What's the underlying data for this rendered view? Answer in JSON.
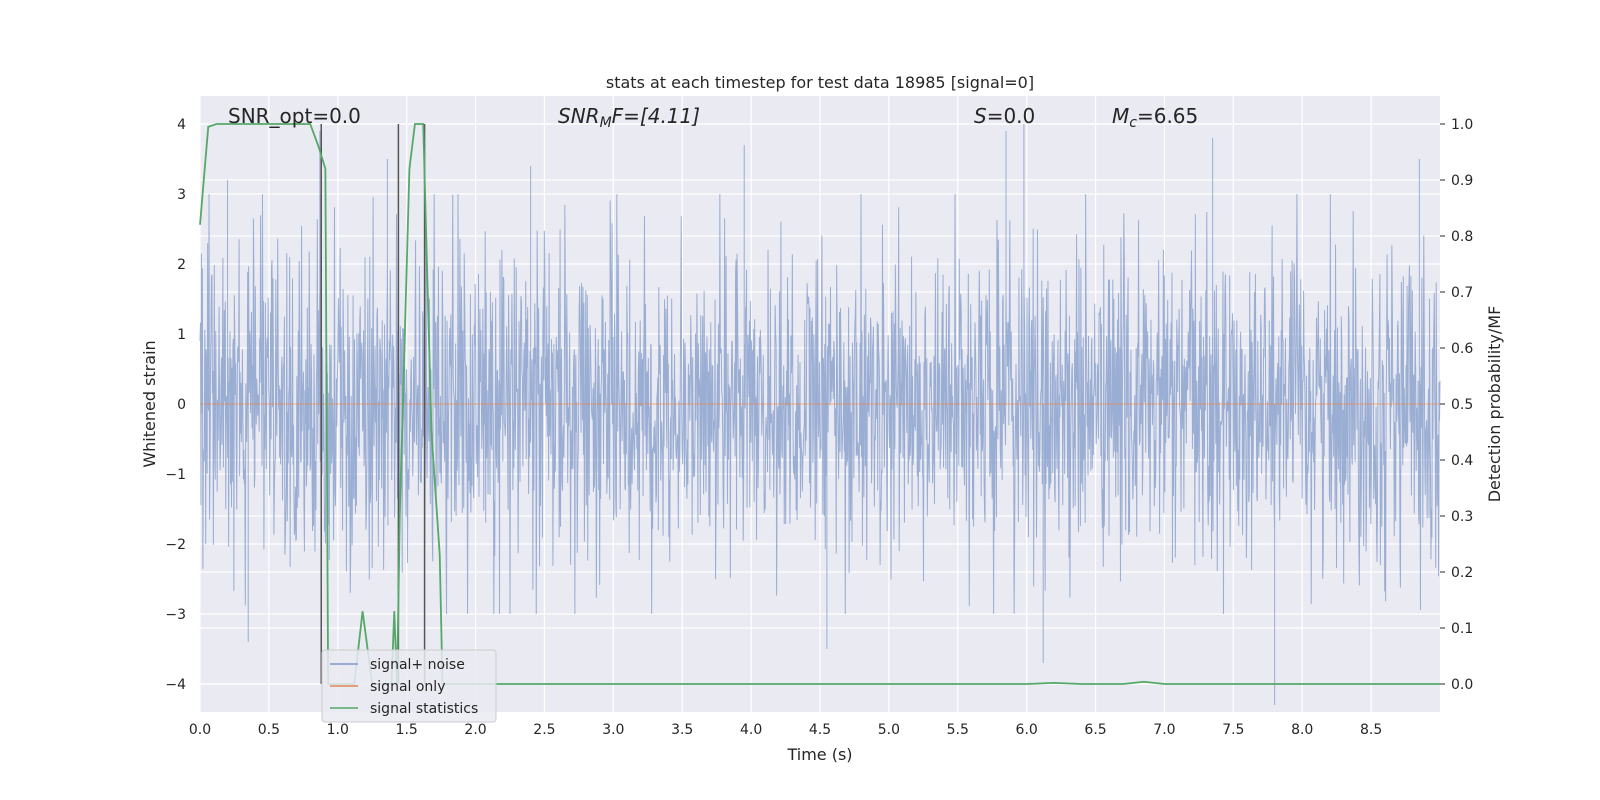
{
  "chart_data": {
    "type": "line",
    "title": "stats at each timestep for test data 18985 [signal=0]",
    "xlabel": "Time (s)",
    "ylabel": "Whitened strain",
    "y2label": "Detection probability/MF",
    "xlim": [
      0,
      9.0
    ],
    "ylim": [
      -4.4,
      4.4
    ],
    "y2lim": [
      -0.05,
      1.05
    ],
    "xticks": [
      0.0,
      0.5,
      1.0,
      1.5,
      2.0,
      2.5,
      3.0,
      3.5,
      4.0,
      4.5,
      5.0,
      5.5,
      6.0,
      6.5,
      7.0,
      7.5,
      8.0,
      8.5
    ],
    "xtick_labels": [
      "0.0",
      "0.5",
      "1.0",
      "1.5",
      "2.0",
      "2.5",
      "3.0",
      "3.5",
      "4.0",
      "4.5",
      "5.0",
      "5.5",
      "6.0",
      "6.5",
      "7.0",
      "7.5",
      "8.0",
      "8.5"
    ],
    "yticks": [
      -4,
      -3,
      -2,
      -1,
      0,
      1,
      2,
      3,
      4
    ],
    "ytick_labels": [
      "−4",
      "−3",
      "−2",
      "−1",
      "0",
      "1",
      "2",
      "3",
      "4"
    ],
    "y2ticks": [
      0.0,
      0.1,
      0.2,
      0.3,
      0.4,
      0.5,
      0.6,
      0.7,
      0.8,
      0.9,
      1.0
    ],
    "y2tick_labels": [
      "0.0",
      "0.1",
      "0.2",
      "0.3",
      "0.4",
      "0.5",
      "0.6",
      "0.7",
      "0.8",
      "0.9",
      "1.0"
    ],
    "grid": true,
    "legend_position": "lower-left",
    "annotations": {
      "snr_opt": "SNR_opt=0.0",
      "snr_mf_prefix": "SNR",
      "snr_mf_sub": "M",
      "snr_mf_rest": "F=[4.11]",
      "s_italic": "S",
      "s_rest": "=0.0",
      "mc_italic": "M",
      "mc_sub": "c",
      "mc_rest": "=6.65"
    },
    "series": [
      {
        "name": "signal+ noise",
        "color": "#7f98c8",
        "axis": "left",
        "description_values": "whitened noise, approx. 1 sigma, peaks near ±3.5",
        "envelope_spikes": [
          {
            "x": 0.2,
            "y": 3.2
          },
          {
            "x": 0.87,
            "y": 3.9
          },
          {
            "x": 1.36,
            "y": 3.5
          },
          {
            "x": 2.4,
            "y": 3.4
          },
          {
            "x": 3.95,
            "y": 3.7
          },
          {
            "x": 5.85,
            "y": 3.9
          },
          {
            "x": 5.98,
            "y": 4.0
          },
          {
            "x": 7.35,
            "y": 3.8
          },
          {
            "x": 8.85,
            "y": 3.5
          },
          {
            "x": 0.35,
            "y": -3.4
          },
          {
            "x": 4.55,
            "y": -3.5
          },
          {
            "x": 6.12,
            "y": -3.7
          },
          {
            "x": 7.8,
            "y": -4.3
          }
        ]
      },
      {
        "name": "signal only",
        "color": "#dd8452",
        "axis": "left",
        "x": [
          0.0,
          9.0
        ],
        "y": [
          0.0,
          0.0
        ]
      },
      {
        "name": "signal statistics",
        "color": "#55a868",
        "axis": "right",
        "x": [
          0.0,
          0.06,
          0.12,
          0.5,
          0.8,
          0.86,
          0.91,
          0.93,
          0.95,
          1.12,
          1.18,
          1.25,
          1.33,
          1.39,
          1.41,
          1.43,
          1.45,
          1.52,
          1.56,
          1.62,
          1.68,
          1.74,
          1.76,
          1.85,
          2.0,
          6.0,
          6.2,
          6.4,
          6.7,
          6.85,
          7.0,
          9.0
        ],
        "y": [
          0.82,
          0.995,
          1.0,
          1.0,
          1.0,
          0.96,
          0.92,
          0.0,
          0.0,
          0.0,
          0.13,
          0.0,
          0.0,
          0.0,
          0.13,
          0.0,
          0.3,
          0.92,
          1.0,
          1.0,
          0.45,
          0.23,
          0.0,
          0.0,
          0.0,
          0.0,
          0.002,
          0.0,
          0.0,
          0.004,
          0.0,
          0.0
        ]
      }
    ],
    "vertical_lines": [
      {
        "x": 0.88,
        "color": "#555555"
      },
      {
        "x": 1.44,
        "color": "#555555"
      },
      {
        "x": 1.63,
        "color": "#555555"
      }
    ]
  }
}
